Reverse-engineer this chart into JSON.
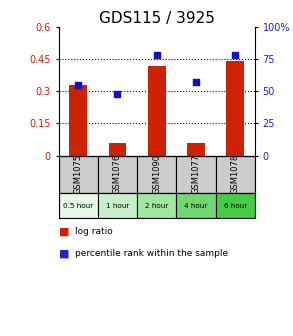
{
  "title": "GDS115 / 3925",
  "samples": [
    "GSM1075",
    "GSM1076",
    "GSM1090",
    "GSM1077",
    "GSM1078"
  ],
  "time_labels": [
    "0.5 hour",
    "1 hour",
    "2 hour",
    "4 hour",
    "6 hour"
  ],
  "log_ratio": [
    0.33,
    0.06,
    0.42,
    0.06,
    0.44
  ],
  "percentile": [
    55,
    48,
    78,
    57,
    78
  ],
  "bar_color": "#cc2200",
  "dot_color": "#1111cc",
  "left_ylim": [
    0,
    0.6
  ],
  "right_ylim": [
    0,
    100
  ],
  "left_yticks": [
    0,
    0.15,
    0.3,
    0.45,
    0.6
  ],
  "right_yticks": [
    0,
    25,
    50,
    75,
    100
  ],
  "right_yticklabels": [
    "0",
    "25",
    "50",
    "75",
    "100%"
  ],
  "hline_values": [
    0.15,
    0.3,
    0.45
  ],
  "time_colors": [
    "#e8f8e8",
    "#c8f0c8",
    "#a0e8a0",
    "#70d870",
    "#44cc44"
  ],
  "gray_bg": "#cccccc",
  "title_fontsize": 11,
  "axis_label_color_left": "#cc2200",
  "axis_label_color_right": "#2222cc",
  "legend_bar_color": "#cc2200",
  "legend_dot_color": "#2222cc"
}
